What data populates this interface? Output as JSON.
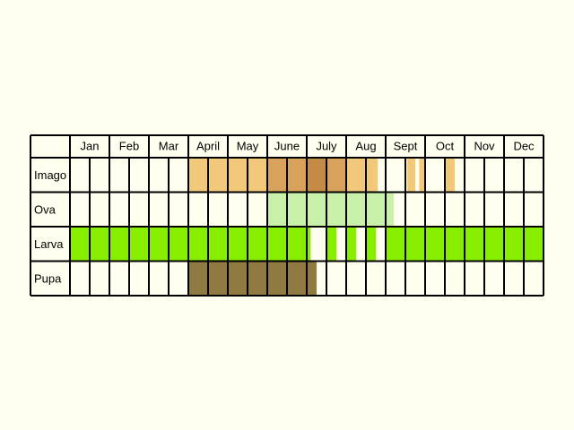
{
  "months": [
    "Jan",
    "Feb",
    "Mar",
    "April",
    "May",
    "June",
    "July",
    "Aug",
    "Sept",
    "Oct",
    "Nov",
    "Dec"
  ],
  "stages": [
    {
      "key": "imago",
      "label": "Imago",
      "segments": [
        {
          "start": 3.0,
          "end": 4.5,
          "color": "#f2c87a"
        },
        {
          "start": 4.5,
          "end": 5.0,
          "color": "#f2c87a"
        },
        {
          "start": 5.0,
          "end": 5.5,
          "color": "#d8a25c"
        },
        {
          "start": 5.5,
          "end": 6.0,
          "color": "#d8a25c"
        },
        {
          "start": 6.0,
          "end": 6.5,
          "color": "#c48b46"
        },
        {
          "start": 6.5,
          "end": 7.0,
          "color": "#d8a25c"
        },
        {
          "start": 7.0,
          "end": 7.5,
          "color": "#f2c87a"
        },
        {
          "start": 7.5,
          "end": 7.8,
          "color": "#f2c87a"
        },
        {
          "start": 8.55,
          "end": 8.75,
          "color": "#f2c87a"
        },
        {
          "start": 8.85,
          "end": 9.0,
          "color": "#f2c87a"
        },
        {
          "start": 9.5,
          "end": 9.75,
          "color": "#f2c87a"
        }
      ]
    },
    {
      "key": "ova",
      "label": "Ova",
      "segments": [
        {
          "start": 5.0,
          "end": 8.2,
          "color": "#c8f0a8"
        }
      ]
    },
    {
      "key": "larva",
      "label": "Larva",
      "segments": [
        {
          "start": 0.0,
          "end": 6.1,
          "color": "#88ee00"
        },
        {
          "start": 6.5,
          "end": 6.75,
          "color": "#88ee00"
        },
        {
          "start": 7.0,
          "end": 7.25,
          "color": "#88ee00"
        },
        {
          "start": 7.5,
          "end": 7.75,
          "color": "#88ee00"
        },
        {
          "start": 8.0,
          "end": 12.0,
          "color": "#88ee00"
        }
      ]
    },
    {
      "key": "pupa",
      "label": "Pupa",
      "segments": [
        {
          "start": 3.0,
          "end": 6.25,
          "color": "#8f7a42"
        }
      ]
    }
  ]
}
